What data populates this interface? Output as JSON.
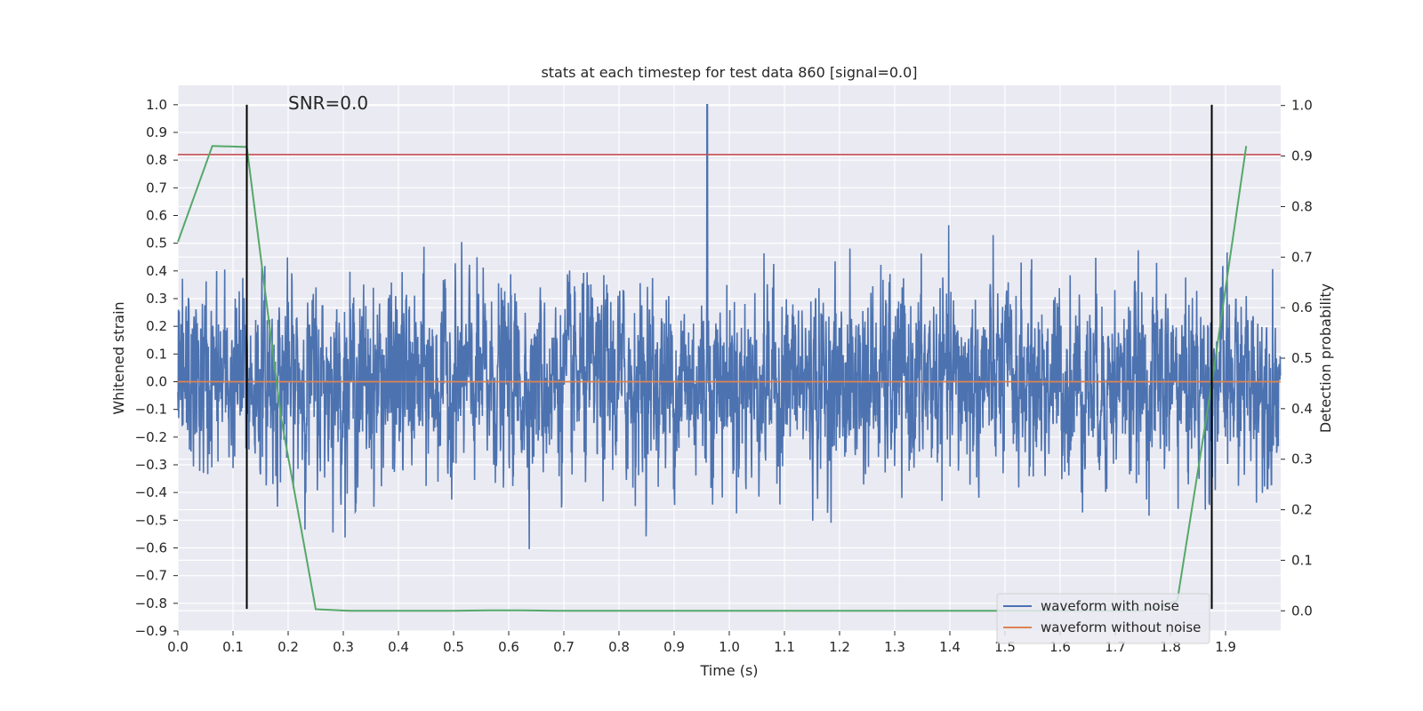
{
  "chart_data": {
    "type": "line",
    "title": "stats at each timestep for test data 860 [signal=0.0]",
    "xlabel": "Time (s)",
    "ylabel_left": "Whitened strain",
    "ylabel_right": "Detection probability",
    "xlim": [
      0.0,
      2.0
    ],
    "ylim_left": [
      -0.9,
      1.07
    ],
    "ylim_right": [
      -0.04,
      1.04
    ],
    "x_ticks": [
      "0.0",
      "0.1",
      "0.2",
      "0.3",
      "0.4",
      "0.5",
      "0.6",
      "0.7",
      "0.8",
      "0.9",
      "1.0",
      "1.1",
      "1.2",
      "1.3",
      "1.4",
      "1.5",
      "1.6",
      "1.7",
      "1.8",
      "1.9"
    ],
    "y_ticks_left": [
      "1.0",
      "0.9",
      "0.8",
      "0.7",
      "0.6",
      "0.5",
      "0.4",
      "0.3",
      "0.2",
      "0.1",
      "0.0",
      "−0.1",
      "−0.2",
      "−0.3",
      "−0.4",
      "−0.5",
      "−0.6",
      "−0.7",
      "−0.8",
      "−0.9"
    ],
    "y_ticks_right": [
      "1.0",
      "0.9",
      "0.8",
      "0.7",
      "0.6",
      "0.5",
      "0.4",
      "0.3",
      "0.2",
      "0.1",
      "0.0"
    ],
    "grid": true,
    "legend_position": "bottom-right",
    "annotation": "SNR=0.0",
    "colors": {
      "noise": "#4c72b0",
      "clean": "#dd8452",
      "probability": "#55a868",
      "threshold": "#c44e52",
      "marker": "#000000",
      "background": "#eaeaf2",
      "grid": "#ffffff"
    },
    "series": [
      {
        "name": "waveform with noise",
        "axis": "left",
        "sample_count": 4096,
        "amplitude_std": 0.2,
        "peak": {
          "x": 0.96,
          "y": 1.0
        },
        "range": [
          -0.82,
          1.0
        ]
      },
      {
        "name": "waveform without noise",
        "axis": "left",
        "x": [
          0.0,
          2.0
        ],
        "y": [
          0.0,
          0.0
        ]
      },
      {
        "axis": "right",
        "x": [
          0.0,
          0.0625,
          0.125,
          0.1875,
          0.25,
          0.3125,
          0.375,
          0.4375,
          0.5,
          0.5625,
          0.625,
          0.6875,
          0.75,
          0.8125,
          0.875,
          0.9375,
          1.0,
          1.0625,
          1.125,
          1.1875,
          1.25,
          1.3125,
          1.375,
          1.4375,
          1.5,
          1.5625,
          1.625,
          1.6875,
          1.75,
          1.8125,
          1.875,
          1.9375
        ],
        "y": [
          0.73,
          0.92,
          0.918,
          0.38,
          0.003,
          0.0,
          0.0,
          0.0,
          0.0,
          0.001,
          0.001,
          0.0,
          0.0,
          0.0,
          0.0,
          0.0,
          0.0,
          0.0,
          0.0,
          0.0,
          0.0,
          0.0,
          0.0,
          0.0,
          0.0,
          0.0,
          0.0,
          0.0,
          0.0,
          0.02,
          0.45,
          0.92
        ]
      }
    ],
    "threshold_line": {
      "axis": "left",
      "y": 0.82
    },
    "vertical_markers": {
      "x": [
        0.125,
        1.875
      ],
      "y_range": [
        -0.82,
        1.0
      ]
    },
    "legend": [
      "waveform with noise",
      "waveform without noise"
    ]
  }
}
